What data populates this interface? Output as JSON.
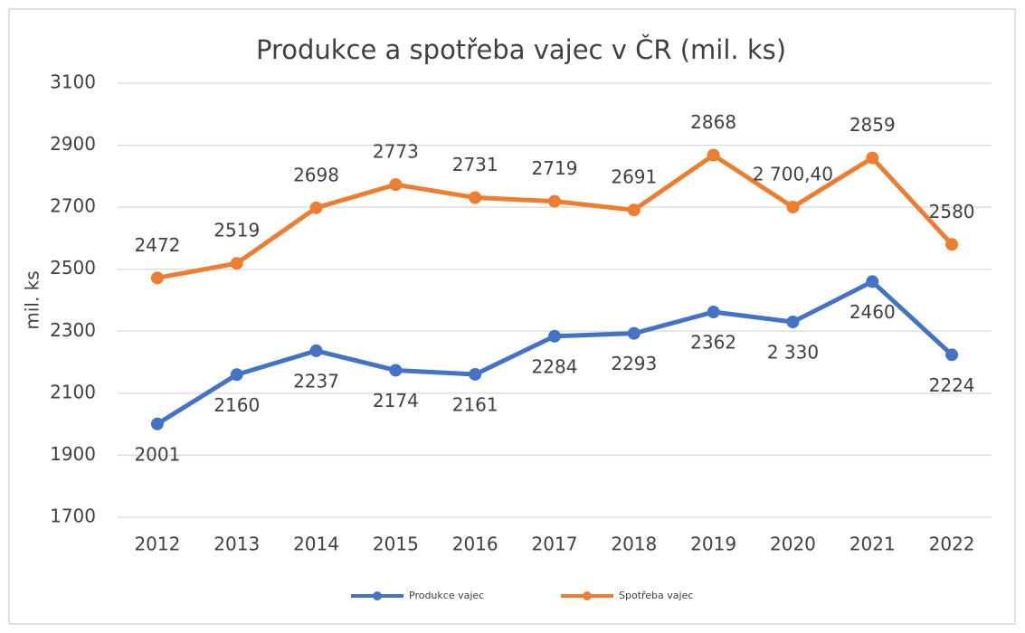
{
  "chart_data": {
    "type": "line",
    "title": "Produkce a  spotřeba vajec v ČR (mil. ks)",
    "y_label": "mil. ks",
    "categories": [
      "2012",
      "2013",
      "2014",
      "2015",
      "2016",
      "2017",
      "2018",
      "2019",
      "2020",
      "2021",
      "2022"
    ],
    "series": [
      {
        "name": "Produkce vajec",
        "color": "#4472c4",
        "values": [
          2001,
          2160,
          2237,
          2174,
          2161,
          2284,
          2293,
          2362,
          2330,
          2460,
          2224
        ],
        "value_labels": [
          "2001",
          "2160",
          "2237",
          "2174",
          "2161",
          "2284",
          "2293",
          "2362",
          "2 330",
          "2460",
          "2224"
        ]
      },
      {
        "name": "Spotřeba vajec",
        "color": "#ed7d31",
        "values": [
          2472,
          2519,
          2698,
          2773,
          2731,
          2719,
          2691,
          2868,
          2700.4,
          2859,
          2580
        ],
        "value_labels": [
          "2472",
          "2519",
          "2698",
          "2773",
          "2731",
          "2719",
          "2691",
          "2868",
          "2 700,40",
          "2859",
          "2580"
        ]
      }
    ],
    "ylim": [
      1700,
      3100
    ],
    "yticks": [
      1700,
      1900,
      2100,
      2300,
      2500,
      2700,
      2900,
      3100
    ],
    "grid": true,
    "legend": "bottom"
  }
}
